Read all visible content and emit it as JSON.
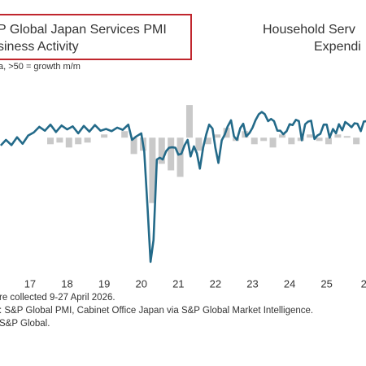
{
  "chart_data": {
    "type": "line",
    "title": [
      "P Global Japan Services PMI",
      "siness Activity"
    ],
    "subtitle": "a, >50 = growth m/m",
    "notes": [
      "re collected 9-27 April 2026.",
      ": S&P Global PMI, Cabinet Office Japan via S&P Global Market Intelligence.",
      "S&P Global."
    ],
    "xlim": [
      2016.19,
      2026.06
    ],
    "xticks": [
      {
        "value": 2017,
        "label": "17"
      },
      {
        "value": 2018,
        "label": "18"
      },
      {
        "value": 2019,
        "label": "19"
      },
      {
        "value": 2020,
        "label": "20"
      },
      {
        "value": 2021,
        "label": "21"
      },
      {
        "value": 2022,
        "label": "22"
      },
      {
        "value": 2023,
        "label": "23"
      },
      {
        "value": 2024,
        "label": "24"
      },
      {
        "value": 2025,
        "label": "25"
      },
      {
        "value": 2026,
        "label": "2"
      }
    ],
    "ylim": [
      20,
      62
    ],
    "y2lim": [
      -40,
      16
    ],
    "series": [
      {
        "name": [
          "Household Serv",
          "Expendi"
        ],
        "type": "bar",
        "axis": "y2",
        "color": "#c9c9c9",
        "x": [
          2017.55,
          2017.8,
          2018.05,
          2018.3,
          2018.55,
          2019.0,
          2019.55,
          2019.8,
          2020.05,
          2020.3,
          2020.55,
          2020.8,
          2021.05,
          2021.3,
          2021.55,
          2021.8,
          2022.05,
          2022.3,
          2022.55,
          2022.8,
          2023.05,
          2023.3,
          2023.55,
          2023.8,
          2024.05,
          2024.3,
          2024.55,
          2024.8,
          2025.05,
          2025.3,
          2025.55,
          2025.8
        ],
        "values": [
          -2,
          -1.5,
          -3,
          -2,
          -1.5,
          1,
          2,
          -5,
          -4,
          -20,
          -8,
          -10,
          -12,
          10,
          -4,
          -2,
          1,
          3,
          -1,
          2,
          -2,
          -1,
          -3,
          1,
          -2,
          -1,
          1,
          -1,
          -2,
          1,
          0.5,
          -2
        ]
      },
      {
        "type": "line",
        "color": "#236a89",
        "x": [
          2016.21,
          2016.35,
          2016.5,
          2016.65,
          2016.8,
          2016.95,
          2017.1,
          2017.25,
          2017.4,
          2017.55,
          2017.7,
          2017.85,
          2018.0,
          2018.15,
          2018.3,
          2018.45,
          2018.6,
          2018.75,
          2018.9,
          2019.05,
          2019.2,
          2019.35,
          2019.5,
          2019.65,
          2019.75,
          2019.85,
          2020.0,
          2020.08,
          2020.17,
          2020.25,
          2020.33,
          2020.42,
          2020.5,
          2020.58,
          2020.67,
          2020.75,
          2020.83,
          2020.92,
          2021.0,
          2021.08,
          2021.17,
          2021.25,
          2021.33,
          2021.42,
          2021.5,
          2021.58,
          2021.67,
          2021.75,
          2021.83,
          2021.92,
          2022.0,
          2022.08,
          2022.17,
          2022.25,
          2022.33,
          2022.42,
          2022.5,
          2022.58,
          2022.67,
          2022.75,
          2022.83,
          2022.92,
          2023.0,
          2023.08,
          2023.17,
          2023.25,
          2023.33,
          2023.42,
          2023.5,
          2023.58,
          2023.67,
          2023.75,
          2023.83,
          2023.92,
          2024.0,
          2024.08,
          2024.17,
          2024.25,
          2024.33,
          2024.42,
          2024.5,
          2024.58,
          2024.67,
          2024.75,
          2024.83,
          2024.92,
          2025.0,
          2025.08,
          2025.17,
          2025.25,
          2025.33,
          2025.42,
          2025.5,
          2025.58,
          2025.67,
          2025.75,
          2025.83,
          2025.92,
          2026.0,
          2026.08
        ],
        "values": [
          48.2,
          49.5,
          48.3,
          50.1,
          48.6,
          50.5,
          51.2,
          52.5,
          51.6,
          53.0,
          51.3,
          52.8,
          51.9,
          52.6,
          51.0,
          52.7,
          51.4,
          52.9,
          51.6,
          52.0,
          51.5,
          52.3,
          51.8,
          53.0,
          49.5,
          50.2,
          51.0,
          46.8,
          33.8,
          21.5,
          26.5,
          45.0,
          45.4,
          45.0,
          46.9,
          47.7,
          47.8,
          47.7,
          46.1,
          46.3,
          48.3,
          49.5,
          45.7,
          48.0,
          46.4,
          42.9,
          47.8,
          50.7,
          53.0,
          52.1,
          47.6,
          44.2,
          49.4,
          50.7,
          52.6,
          54.0,
          50.3,
          49.5,
          52.2,
          53.2,
          50.3,
          51.1,
          52.3,
          54.0,
          55.4,
          55.9,
          55.4,
          53.8,
          54.3,
          53.8,
          51.6,
          51.6,
          50.8,
          51.5,
          53.1,
          52.9,
          54.1,
          53.8,
          49.4,
          53.1,
          53.7,
          53.9,
          49.7,
          50.5,
          50.9,
          53.0,
          53.0,
          50.0,
          52.0,
          51.0,
          53.1,
          51.7,
          53.6,
          53.1,
          52.4,
          53.3,
          53.2,
          51.5,
          53.7,
          53.8
        ]
      }
    ]
  }
}
